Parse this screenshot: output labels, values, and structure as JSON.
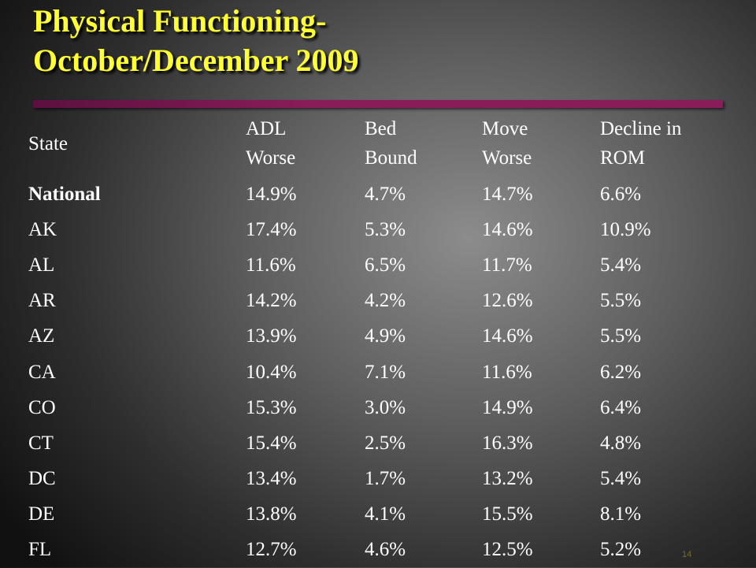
{
  "title": {
    "line1": "Physical Functioning-",
    "line2": "October/December 2009"
  },
  "table": {
    "headers": [
      "State",
      "ADL\nWorse",
      "Bed\nBound",
      "Move\nWorse",
      "Decline in\nROM"
    ],
    "rows": [
      [
        "National",
        "14.9%",
        "4.7%",
        "14.7%",
        "6.6%"
      ],
      [
        "AK",
        "17.4%",
        "5.3%",
        "14.6%",
        "10.9%"
      ],
      [
        "AL",
        "11.6%",
        "6.5%",
        "11.7%",
        "5.4%"
      ],
      [
        "AR",
        "14.2%",
        "4.2%",
        "12.6%",
        "5.5%"
      ],
      [
        "AZ",
        "13.9%",
        "4.9%",
        "14.6%",
        "5.5%"
      ],
      [
        "CA",
        "10.4%",
        "7.1%",
        "11.6%",
        "6.2%"
      ],
      [
        "CO",
        "15.3%",
        "3.0%",
        "14.9%",
        "6.4%"
      ],
      [
        "CT",
        "15.4%",
        "2.5%",
        "16.3%",
        "4.8%"
      ],
      [
        "DC",
        "13.4%",
        "1.7%",
        "13.2%",
        "5.4%"
      ],
      [
        "DE",
        "13.8%",
        "4.1%",
        "15.5%",
        "8.1%"
      ],
      [
        "FL",
        "12.7%",
        "4.6%",
        "12.5%",
        "5.2%"
      ]
    ]
  },
  "slide_number": "14",
  "colors": {
    "title": "#ffff33",
    "rule": "#8a1c5a",
    "text": "#ffffff"
  }
}
